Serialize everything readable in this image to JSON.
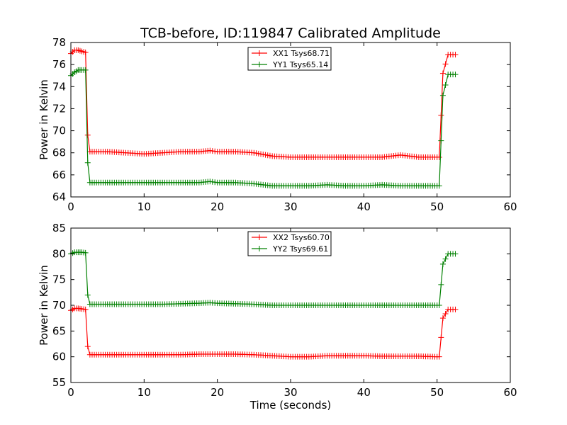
{
  "title": "TCB-before, ID:119847 Calibrated Amplitude",
  "colors": {
    "red": "#ff0000",
    "green": "#008000"
  },
  "chart_data": [
    {
      "type": "line",
      "ylabel": "Power in Kelvin",
      "xlabel": "",
      "xlim": [
        0,
        60
      ],
      "ylim": [
        64,
        78
      ],
      "xticks": [
        "0",
        "10",
        "20",
        "30",
        "40",
        "50",
        "60"
      ],
      "yticks": [
        "64",
        "66",
        "68",
        "70",
        "72",
        "74",
        "76",
        "78"
      ],
      "legend_position": "top-center",
      "series": [
        {
          "name": "XX1 Tsys68.71",
          "color": "#ff0000",
          "x": [
            0,
            0.5,
            1.0,
            1.5,
            2.0,
            2.3,
            2.6,
            3.5,
            5,
            7.5,
            10,
            12.5,
            15,
            17.5,
            19,
            20,
            22.5,
            25,
            27.5,
            30,
            32.5,
            35,
            37.5,
            40,
            42.5,
            45,
            47.5,
            50,
            50.3,
            50.8,
            51.5,
            52.5
          ],
          "y": [
            77.0,
            77.3,
            77.3,
            77.2,
            77.1,
            69.6,
            68.1,
            68.1,
            68.1,
            68.0,
            67.9,
            68.0,
            68.1,
            68.1,
            68.2,
            68.1,
            68.1,
            68.0,
            67.7,
            67.6,
            67.6,
            67.6,
            67.6,
            67.6,
            67.6,
            67.8,
            67.6,
            67.6,
            67.6,
            75.2,
            76.9,
            76.9
          ]
        },
        {
          "name": "YY1 Tsys65.14",
          "color": "#008000",
          "x": [
            0,
            0.5,
            1.0,
            1.5,
            2.0,
            2.3,
            2.6,
            3.5,
            5,
            7.5,
            10,
            12.5,
            15,
            17.5,
            19,
            20,
            22.5,
            25,
            27.5,
            30,
            32.5,
            35,
            37.5,
            40,
            42.5,
            45,
            47.5,
            50,
            50.3,
            50.8,
            51.5,
            52.5
          ],
          "y": [
            75.0,
            75.3,
            75.5,
            75.5,
            75.5,
            67.1,
            65.3,
            65.3,
            65.3,
            65.3,
            65.3,
            65.3,
            65.3,
            65.3,
            65.4,
            65.3,
            65.3,
            65.2,
            65.0,
            65.0,
            65.0,
            65.1,
            65.0,
            65.0,
            65.1,
            65.0,
            65.0,
            65.0,
            65.0,
            73.2,
            75.1,
            75.1
          ]
        }
      ]
    },
    {
      "type": "line",
      "ylabel": "Power in Kelvin",
      "xlabel": "Time (seconds)",
      "xlim": [
        0,
        60
      ],
      "ylim": [
        55,
        85
      ],
      "xticks": [
        "0",
        "10",
        "20",
        "30",
        "40",
        "50",
        "60"
      ],
      "yticks": [
        "55",
        "60",
        "65",
        "70",
        "75",
        "80",
        "85"
      ],
      "legend_position": "top-center",
      "series": [
        {
          "name": "XX2 Tsys60.70",
          "color": "#ff0000",
          "x": [
            0,
            0.5,
            1.0,
            1.5,
            2.0,
            2.3,
            2.6,
            3.5,
            5,
            7.5,
            10,
            12.5,
            15,
            17.5,
            19,
            20,
            22.5,
            25,
            27.5,
            30,
            32.5,
            35,
            37.5,
            40,
            42.5,
            45,
            47.5,
            50,
            50.3,
            50.8,
            51.5,
            52.5
          ],
          "y": [
            69.0,
            69.4,
            69.4,
            69.3,
            69.2,
            62.0,
            60.4,
            60.4,
            60.4,
            60.4,
            60.4,
            60.4,
            60.4,
            60.5,
            60.5,
            60.5,
            60.5,
            60.4,
            60.2,
            60.0,
            60.0,
            60.2,
            60.2,
            60.2,
            60.1,
            60.1,
            60.1,
            60.0,
            60.0,
            67.5,
            69.2,
            69.2
          ]
        },
        {
          "name": "YY2 Tsys69.61",
          "color": "#008000",
          "x": [
            0,
            0.5,
            1.0,
            1.5,
            2.0,
            2.3,
            2.6,
            3.5,
            5,
            7.5,
            10,
            12.5,
            15,
            17.5,
            19,
            20,
            22.5,
            25,
            27.5,
            30,
            32.5,
            35,
            37.5,
            40,
            42.5,
            45,
            47.5,
            50,
            50.3,
            50.8,
            51.5,
            52.5
          ],
          "y": [
            80.0,
            80.3,
            80.3,
            80.3,
            80.2,
            72.0,
            70.2,
            70.2,
            70.2,
            70.2,
            70.2,
            70.2,
            70.3,
            70.4,
            70.5,
            70.4,
            70.3,
            70.2,
            70.0,
            70.0,
            70.0,
            70.0,
            70.0,
            70.0,
            70.0,
            70.0,
            70.0,
            70.0,
            70.0,
            78.0,
            80.0,
            80.0
          ]
        }
      ]
    }
  ]
}
